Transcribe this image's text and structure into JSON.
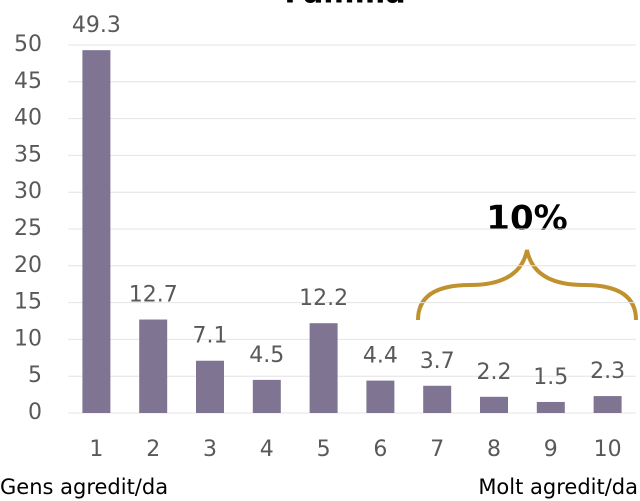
{
  "chart_data": {
    "type": "bar",
    "title": "Família",
    "categories": [
      "1",
      "2",
      "3",
      "4",
      "5",
      "6",
      "7",
      "8",
      "9",
      "10"
    ],
    "values": [
      49.3,
      12.7,
      7.1,
      4.5,
      12.2,
      4.4,
      3.7,
      2.2,
      1.5,
      2.3
    ],
    "color": "#7f7593",
    "ylim": [
      0,
      50
    ],
    "yticks": [
      0,
      5,
      10,
      15,
      20,
      25,
      30,
      35,
      40,
      45,
      50
    ],
    "grid": true,
    "annotations": [
      "10%"
    ],
    "x_axis_left_label": "Gens agredit/da",
    "x_axis_right_label": "Molt agredit/da"
  }
}
